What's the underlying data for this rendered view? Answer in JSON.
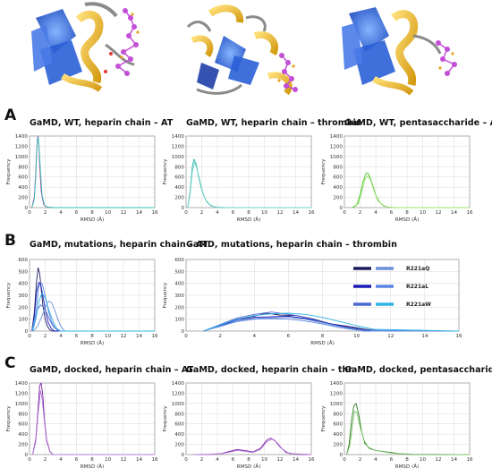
{
  "panels": [
    {
      "letter": "A"
    },
    {
      "letter": "B"
    },
    {
      "letter": "C"
    }
  ],
  "legend": {
    "colors_col1": [
      "#1c1c5e",
      "#1a1ab5",
      "#4a68d2"
    ],
    "colors_col2": [
      "#6a8fd8",
      "#5a86e6",
      "#2fb4e6"
    ],
    "labels": [
      "R221aQ",
      "R221aL",
      "R221aW"
    ]
  },
  "chart_data": [
    {
      "type": "line",
      "row": 0,
      "col": 0,
      "title": "GaMD, WT, heparin chain – AT",
      "xlabel": "RMSD (Å)",
      "ylabel": "Frequency",
      "xlim": [
        0,
        16
      ],
      "ylim": [
        0,
        1400
      ],
      "xticks": [
        0,
        2,
        4,
        6,
        8,
        10,
        12,
        14,
        16
      ],
      "yticks": [
        0,
        200,
        400,
        600,
        800,
        1000,
        1200,
        1400
      ],
      "grid": true,
      "series": [
        {
          "color": "#c0399a",
          "x": [
            0.3,
            0.6,
            0.8,
            0.9,
            1.0,
            1.1,
            1.2,
            1.3,
            1.5,
            1.8,
            2.2,
            3,
            16
          ],
          "y": [
            0,
            200,
            700,
            1100,
            1350,
            1400,
            1200,
            800,
            300,
            60,
            10,
            0,
            0
          ]
        },
        {
          "color": "#2ec4b6",
          "x": [
            0.3,
            0.6,
            0.8,
            0.9,
            1.0,
            1.1,
            1.2,
            1.4,
            1.6,
            1.9,
            2.3,
            3,
            16
          ],
          "y": [
            0,
            150,
            600,
            1000,
            1300,
            1380,
            1250,
            700,
            250,
            50,
            8,
            0,
            0
          ]
        }
      ]
    },
    {
      "type": "line",
      "row": 0,
      "col": 1,
      "title": "GaMD, WT, heparin chain – thrombin",
      "xlabel": "RMSD (Å)",
      "ylabel": "Frequency",
      "xlim": [
        0,
        16
      ],
      "ylim": [
        0,
        1400
      ],
      "xticks": [
        0,
        2,
        4,
        6,
        8,
        10,
        12,
        14,
        16
      ],
      "yticks": [
        0,
        200,
        400,
        600,
        800,
        1000,
        1200,
        1400
      ],
      "grid": true,
      "series": [
        {
          "color": "#2bb8a8",
          "x": [
            0.2,
            0.5,
            0.8,
            1.0,
            1.3,
            1.6,
            2.0,
            2.5,
            3.0,
            3.5,
            4.0,
            5,
            16
          ],
          "y": [
            0,
            300,
            800,
            950,
            850,
            600,
            350,
            150,
            60,
            20,
            5,
            0,
            0
          ]
        },
        {
          "color": "#6fd3c9",
          "x": [
            0.2,
            0.5,
            0.8,
            1.1,
            1.4,
            1.8,
            2.2,
            2.7,
            3.2,
            4,
            5,
            16
          ],
          "y": [
            0,
            250,
            700,
            900,
            750,
            500,
            250,
            100,
            30,
            8,
            0,
            0
          ]
        }
      ]
    },
    {
      "type": "line",
      "row": 0,
      "col": 2,
      "title": "GaMD, WT, pentasaccharide – AT",
      "xlabel": "RMSD (Å)",
      "ylabel": "Frequency",
      "xlim": [
        0,
        16
      ],
      "ylim": [
        0,
        1400
      ],
      "xticks": [
        0,
        2,
        4,
        6,
        8,
        10,
        12,
        14,
        16
      ],
      "yticks": [
        0,
        200,
        400,
        600,
        800,
        1000,
        1200,
        1400
      ],
      "grid": true,
      "series": [
        {
          "color": "#4ec02a",
          "x": [
            1.0,
            1.6,
            2.0,
            2.4,
            2.8,
            3.1,
            3.5,
            4.0,
            4.5,
            5.0,
            5.5,
            6.5,
            16
          ],
          "y": [
            0,
            60,
            250,
            520,
            680,
            660,
            500,
            250,
            100,
            40,
            10,
            0,
            0
          ]
        },
        {
          "color": "#9ae36e",
          "x": [
            1.2,
            1.8,
            2.2,
            2.6,
            3.0,
            3.4,
            3.8,
            4.3,
            5.0,
            6.0,
            16
          ],
          "y": [
            0,
            80,
            300,
            550,
            620,
            520,
            320,
            130,
            30,
            0,
            0
          ]
        }
      ]
    },
    {
      "type": "line",
      "row": 1,
      "col": 0,
      "title": "GaMD, mutations, heparin chain – AT",
      "xlabel": "RMSD (Å)",
      "ylabel": "Frequency",
      "xlim": [
        0,
        16
      ],
      "ylim": [
        0,
        600
      ],
      "xticks": [
        0,
        2,
        4,
        6,
        8,
        10,
        12,
        14,
        16
      ],
      "yticks": [
        0,
        100,
        200,
        300,
        400,
        500,
        600
      ],
      "grid": true,
      "series": [
        {
          "color": "#1c1c5e",
          "x": [
            0.3,
            0.6,
            0.9,
            1.1,
            1.3,
            1.5,
            1.7,
            2.0,
            2.3,
            2.6,
            3.0,
            16
          ],
          "y": [
            0,
            150,
            420,
            530,
            480,
            350,
            220,
            100,
            40,
            10,
            0,
            0
          ]
        },
        {
          "color": "#1a1ab5",
          "x": [
            0.3,
            0.6,
            0.9,
            1.2,
            1.5,
            1.8,
            2.1,
            2.4,
            2.8,
            3.2,
            16
          ],
          "y": [
            0,
            120,
            330,
            410,
            370,
            260,
            150,
            70,
            20,
            0,
            0
          ]
        },
        {
          "color": "#4a68d2",
          "x": [
            0.3,
            0.7,
            1.0,
            1.4,
            1.8,
            2.2,
            2.6,
            3.0,
            3.5,
            4.0,
            16
          ],
          "y": [
            0,
            80,
            180,
            220,
            200,
            150,
            90,
            40,
            10,
            0,
            0
          ]
        },
        {
          "color": "#6a8fd8",
          "x": [
            0.5,
            1.0,
            1.5,
            2.0,
            2.4,
            2.8,
            3.2,
            3.6,
            4.0,
            4.5,
            16
          ],
          "y": [
            0,
            40,
            110,
            200,
            250,
            240,
            180,
            100,
            40,
            0,
            0
          ]
        },
        {
          "color": "#5a86e6",
          "x": [
            0.3,
            0.8,
            1.2,
            1.6,
            2.0,
            2.4,
            2.8,
            3.3,
            3.8,
            16
          ],
          "y": [
            0,
            150,
            380,
            400,
            300,
            170,
            80,
            25,
            0,
            0
          ]
        },
        {
          "color": "#2fb4e6",
          "x": [
            0.4,
            0.8,
            1.2,
            1.6,
            2.0,
            2.5,
            3.0,
            3.5,
            4.0,
            16
          ],
          "y": [
            0,
            100,
            250,
            320,
            280,
            170,
            80,
            20,
            0,
            0
          ]
        }
      ]
    },
    {
      "type": "line",
      "row": 1,
      "col": 1,
      "title": "GaMD, mutations, heparin chain – thrombin",
      "xlabel": "RMSD (Å)",
      "ylabel": "Frequency",
      "xlim": [
        0,
        16
      ],
      "ylim": [
        0,
        600
      ],
      "xticks": [
        0,
        2,
        4,
        6,
        8,
        10,
        12,
        14,
        16
      ],
      "yticks": [
        0,
        100,
        200,
        300,
        400,
        500,
        600
      ],
      "grid": true,
      "series": [
        {
          "color": "#1c1c5e",
          "x": [
            1.0,
            2.0,
            3.0,
            4.0,
            4.7,
            5.5,
            6.5,
            7.5,
            8.5,
            9.5,
            10.5,
            11.5,
            16
          ],
          "y": [
            0,
            50,
            100,
            125,
            150,
            135,
            130,
            100,
            60,
            40,
            15,
            0,
            0
          ]
        },
        {
          "color": "#1a1ab5",
          "x": [
            1.0,
            2.0,
            3.0,
            4.0,
            5.0,
            6.0,
            7.0,
            8.0,
            9.0,
            10.0,
            11.0,
            16
          ],
          "y": [
            0,
            45,
            95,
            115,
            120,
            125,
            105,
            75,
            45,
            20,
            0,
            0
          ]
        },
        {
          "color": "#4a68d2",
          "x": [
            1.0,
            2.0,
            3.0,
            4.0,
            5.0,
            5.8,
            6.5,
            7.5,
            8.5,
            9.5,
            10.5,
            16
          ],
          "y": [
            0,
            55,
            110,
            140,
            160,
            145,
            130,
            95,
            55,
            25,
            0,
            0
          ]
        },
        {
          "color": "#6a8fd8",
          "x": [
            1.0,
            2.0,
            3.0,
            4.0,
            5.0,
            6.0,
            7.0,
            8.0,
            9.0,
            10.0,
            11.0,
            16
          ],
          "y": [
            0,
            40,
            85,
            105,
            110,
            115,
            100,
            70,
            40,
            15,
            0,
            0
          ]
        },
        {
          "color": "#5a86e6",
          "x": [
            1.0,
            2.0,
            3.0,
            4.0,
            5.0,
            6.0,
            7.0,
            8.0,
            9.0,
            10.0,
            16
          ],
          "y": [
            0,
            40,
            80,
            100,
            105,
            100,
            85,
            60,
            30,
            8,
            0
          ]
        },
        {
          "color": "#2fb4e6",
          "x": [
            1.0,
            2.0,
            3.0,
            4.0,
            5.0,
            6.0,
            7.0,
            8.0,
            9.0,
            10.0,
            11.0,
            16
          ],
          "y": [
            0,
            50,
            100,
            130,
            145,
            150,
            140,
            115,
            80,
            45,
            15,
            0
          ]
        }
      ]
    },
    {
      "type": "line",
      "row": 2,
      "col": 0,
      "title": "GaMD, docked, heparin chain – AT",
      "xlabel": "RMSD (Å)",
      "ylabel": "Frequency",
      "xlim": [
        0,
        16
      ],
      "ylim": [
        0,
        1400
      ],
      "xticks": [
        0,
        2,
        4,
        6,
        8,
        10,
        12,
        14,
        16
      ],
      "yticks": [
        0,
        200,
        400,
        600,
        800,
        1000,
        1200,
        1400
      ],
      "grid": true,
      "series": [
        {
          "color": "#7a1fa2",
          "x": [
            0.4,
            0.8,
            1.1,
            1.3,
            1.5,
            1.7,
            1.9,
            2.2,
            2.6,
            3.0,
            16
          ],
          "y": [
            0,
            300,
            900,
            1350,
            1400,
            1150,
            700,
            280,
            60,
            0,
            0
          ]
        },
        {
          "color": "#b47ad8",
          "x": [
            0.4,
            0.8,
            1.1,
            1.4,
            1.6,
            1.9,
            2.2,
            2.6,
            3.0,
            16
          ],
          "y": [
            0,
            250,
            800,
            1250,
            1100,
            650,
            250,
            50,
            0,
            0
          ]
        }
      ]
    },
    {
      "type": "line",
      "row": 2,
      "col": 1,
      "title": "GaMD, docked, heparin chain – thr.",
      "xlabel": "RMSD (Å)",
      "ylabel": "Frequency",
      "xlim": [
        0,
        16
      ],
      "ylim": [
        0,
        1400
      ],
      "xticks": [
        0,
        2,
        4,
        6,
        8,
        10,
        12,
        14,
        16
      ],
      "yticks": [
        0,
        200,
        400,
        600,
        800,
        1000,
        1200,
        1400
      ],
      "grid": true,
      "series": [
        {
          "color": "#7a1fa2",
          "x": [
            1.0,
            3.0,
            4.5,
            5.5,
            6.5,
            7.5,
            8.5,
            9.5,
            10.3,
            10.8,
            11.3,
            12.0,
            12.8,
            14,
            16
          ],
          "y": [
            0,
            5,
            20,
            60,
            100,
            80,
            50,
            120,
            280,
            320,
            280,
            150,
            40,
            5,
            0
          ]
        },
        {
          "color": "#b47ad8",
          "x": [
            1.0,
            3.0,
            4.5,
            5.5,
            6.5,
            7.5,
            8.5,
            9.5,
            10.3,
            11.0,
            11.6,
            12.3,
            13.2,
            16
          ],
          "y": [
            0,
            3,
            15,
            45,
            80,
            65,
            40,
            100,
            250,
            300,
            240,
            110,
            20,
            0
          ]
        }
      ]
    },
    {
      "type": "line",
      "row": 2,
      "col": 2,
      "title": "GaMD, docked, pentasaccharide – AT",
      "xlabel": "RMSD (Å)",
      "ylabel": "Frequency",
      "xlim": [
        0,
        16
      ],
      "ylim": [
        0,
        1400
      ],
      "xticks": [
        0,
        2,
        4,
        6,
        8,
        10,
        12,
        14,
        16
      ],
      "yticks": [
        0,
        200,
        400,
        600,
        800,
        1000,
        1200,
        1400
      ],
      "grid": true,
      "series": [
        {
          "color": "#2e7d1f",
          "x": [
            0.3,
            0.6,
            0.9,
            1.2,
            1.5,
            1.8,
            2.2,
            2.6,
            3.2,
            4.0,
            5.0,
            6.0,
            7.0,
            8.5,
            16
          ],
          "y": [
            0,
            200,
            650,
            950,
            1000,
            800,
            450,
            220,
            120,
            80,
            60,
            40,
            20,
            5,
            0
          ]
        },
        {
          "color": "#7cc46a",
          "x": [
            0.3,
            0.7,
            1.0,
            1.3,
            1.6,
            2.0,
            2.5,
            3.0,
            3.8,
            4.8,
            6,
            8,
            16
          ],
          "y": [
            0,
            180,
            550,
            850,
            820,
            550,
            280,
            150,
            90,
            60,
            30,
            5,
            0
          ]
        }
      ]
    }
  ]
}
